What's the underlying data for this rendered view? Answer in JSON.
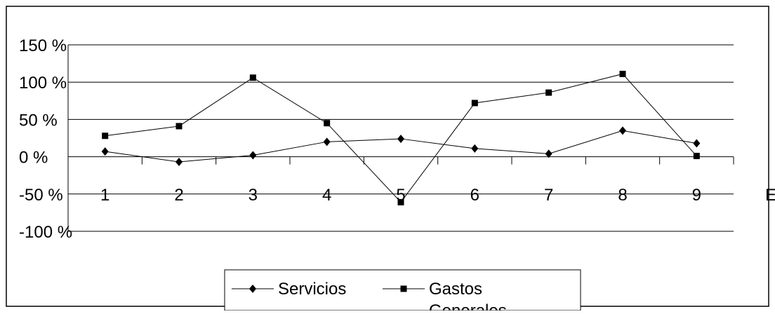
{
  "chart_data": {
    "type": "line",
    "title": "",
    "xlabel": "",
    "ylabel": "",
    "categories": [
      "1",
      "2",
      "3",
      "4",
      "5",
      "6",
      "7",
      "8",
      "9"
    ],
    "y_tick_labels": [
      "150 %",
      "100 %",
      "50 %",
      "0 %",
      "-50 %",
      "-100 %"
    ],
    "y_ticks": [
      150,
      100,
      50,
      0,
      -50,
      -100
    ],
    "ylim": [
      -100,
      150
    ],
    "grid": true,
    "legend_position": "bottom-center",
    "clipped_axis_label": "E",
    "series": [
      {
        "name": "Servicios",
        "marker": "diamond",
        "values": [
          7,
          -7,
          2,
          20,
          24,
          11,
          4,
          35,
          18
        ]
      },
      {
        "name": "Gastos Generales",
        "marker": "square",
        "values": [
          28,
          41,
          106,
          45,
          -61,
          72,
          86,
          111,
          1
        ]
      }
    ]
  }
}
